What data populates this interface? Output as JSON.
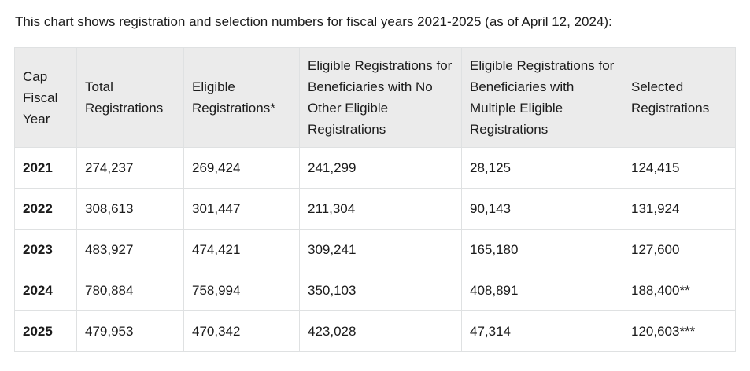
{
  "intro_text": "This chart shows registration and selection numbers for fiscal years 2021-2025 (as of April 12, 2024):",
  "table": {
    "headers": [
      "Cap Fiscal Year",
      "Total Registrations",
      "Eligible Registrations*",
      "Eligible Registrations for Beneficiaries with No Other Eligible Registrations",
      "Eligible Registrations for Beneficiaries with Multiple Eligible Registrations",
      "Selected Registrations"
    ],
    "rows": [
      [
        "2021",
        "274,237",
        "269,424",
        "241,299",
        "28,125",
        "124,415"
      ],
      [
        "2022",
        "308,613",
        "301,447",
        "211,304",
        "90,143",
        "131,924"
      ],
      [
        "2023",
        "483,927",
        "474,421",
        "309,241",
        "165,180",
        "127,600"
      ],
      [
        "2024",
        "780,884",
        "758,994",
        "350,103",
        "408,891",
        "188,400**"
      ],
      [
        "2025",
        "479,953",
        "470,342",
        "423,028",
        "47,314",
        "120,603***"
      ]
    ]
  },
  "colors": {
    "header_background": "#ebebeb",
    "border": "#dfe1e2",
    "text": "#1b1b1b"
  }
}
